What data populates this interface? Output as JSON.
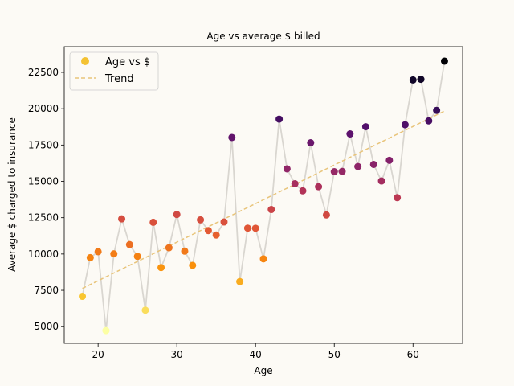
{
  "chart_data": {
    "type": "scatter",
    "title": "Age vs average $ billed",
    "xlabel": "Age",
    "ylabel": "Average $ charged to insurance",
    "xlim": [
      15.7,
      66.3
    ],
    "ylim": [
      3850,
      24270
    ],
    "xticks": [
      20,
      30,
      40,
      50,
      60
    ],
    "yticks": [
      5000,
      7500,
      10000,
      12500,
      15000,
      17500,
      20000,
      22500
    ],
    "ytick_labels": [
      "5000",
      "7500",
      "10000",
      "12500",
      "15000",
      "17500",
      "20000",
      "22500"
    ],
    "grid": false,
    "legend": {
      "position": "top-left",
      "entries": [
        "Age vs $",
        "Trend"
      ]
    },
    "colors": {
      "connector": "#d9d6d0",
      "trend": "#e8c47a",
      "legend_marker": "#f4c232",
      "background": "#fcfaf5"
    },
    "series": [
      {
        "name": "Age vs $",
        "x": [
          18,
          19,
          20,
          21,
          22,
          23,
          24,
          25,
          26,
          27,
          28,
          29,
          30,
          31,
          32,
          33,
          34,
          35,
          36,
          37,
          38,
          39,
          40,
          41,
          42,
          43,
          44,
          45,
          46,
          47,
          48,
          49,
          50,
          51,
          52,
          53,
          54,
          55,
          56,
          57,
          58,
          59,
          60,
          61,
          62,
          63,
          64
        ],
        "y": [
          7086,
          9748,
          10159,
          4730,
          10012,
          12419,
          10648,
          9838,
          6133,
          12185,
          9069,
          10431,
          12719,
          10197,
          9220,
          12352,
          11613,
          11307,
          12204,
          18020,
          8102,
          11779,
          11773,
          9668,
          13061,
          19284,
          15860,
          14838,
          14350,
          17654,
          14632,
          12688,
          15663,
          15683,
          18264,
          16021,
          18759,
          16164,
          15025,
          16447,
          13879,
          18896,
          21979,
          22024,
          19163,
          19886,
          23276
        ]
      },
      {
        "name": "Trend",
        "x": [
          18,
          64
        ],
        "y": [
          7630,
          19840
        ]
      }
    ]
  }
}
